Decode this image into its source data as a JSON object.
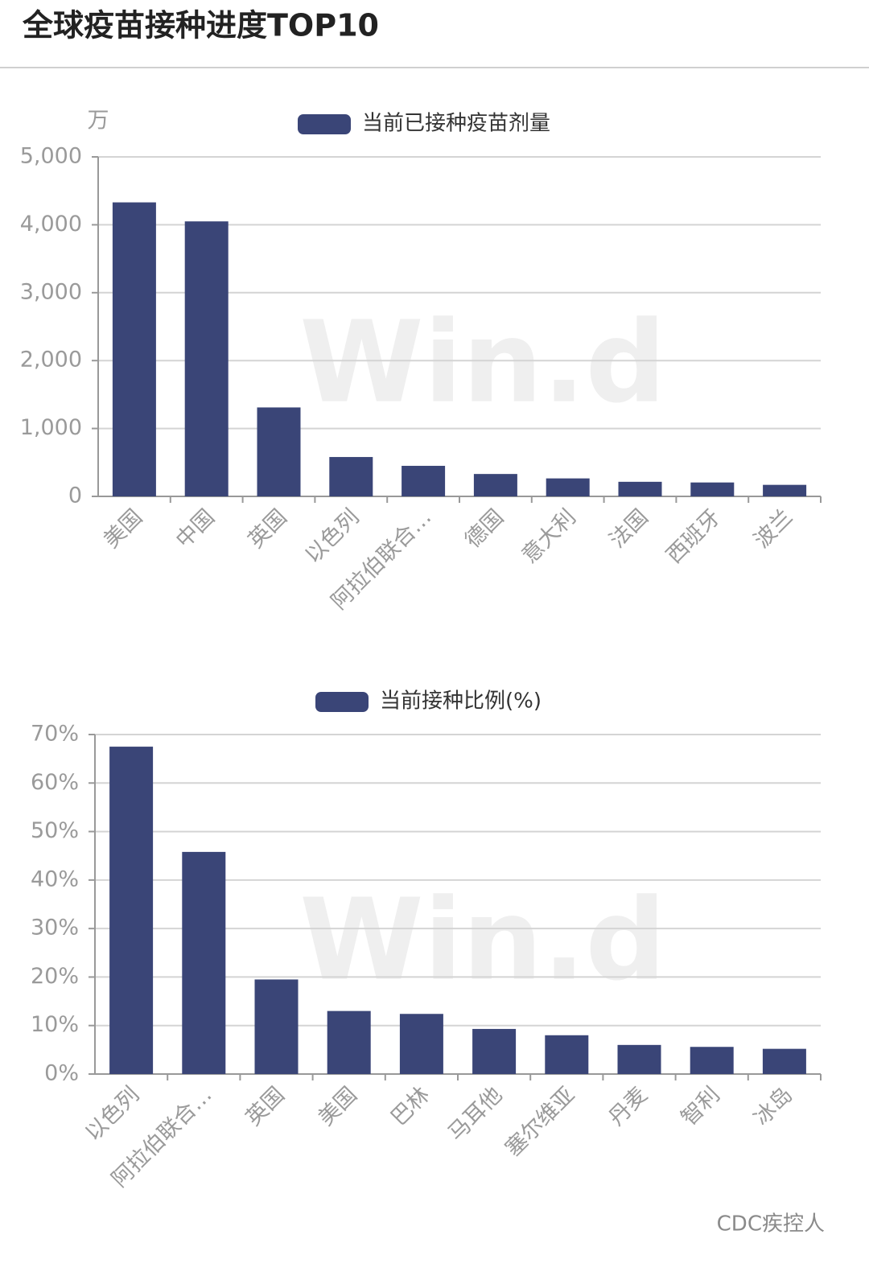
{
  "title": "全球疫苗接种进度TOP10",
  "watermark": "Win.d",
  "footer": "CDC疾控人",
  "chart_data": [
    {
      "type": "bar",
      "ylabel": "万",
      "categories": [
        "美国",
        "中国",
        "英国",
        "以色列",
        "阿拉伯联合…",
        "德国",
        "意大利",
        "法国",
        "西班牙",
        "波兰"
      ],
      "series": [
        {
          "name": "当前已接种疫苗剂量",
          "color": "#3a4577",
          "values": [
            4330,
            4050,
            1310,
            580,
            450,
            330,
            265,
            215,
            205,
            170
          ]
        }
      ],
      "ylim": [
        0,
        5000
      ],
      "yticks": [
        0,
        {
          "value": 1000,
          "label": "1,000"
        },
        {
          "value": 2000,
          "label": "2,000"
        },
        {
          "value": 3000,
          "label": "3,000"
        },
        {
          "value": 4000,
          "label": "4,000"
        },
        {
          "value": 5000,
          "label": "5,000"
        }
      ],
      "grid": true
    },
    {
      "type": "bar",
      "categories": [
        "以色列",
        "阿拉伯联合…",
        "英国",
        "美国",
        "巴林",
        "马耳他",
        "塞尔维亚",
        "丹麦",
        "智利",
        "冰岛"
      ],
      "series": [
        {
          "name": "当前接种比例(%)",
          "color": "#3a4577",
          "values": [
            67.5,
            45.8,
            19.5,
            13,
            12.4,
            9.3,
            8,
            6,
            5.6,
            5.2
          ]
        }
      ],
      "ylim": [
        0,
        70
      ],
      "yticks": [
        {
          "value": 0,
          "label": "0%"
        },
        {
          "value": 10,
          "label": "10%"
        },
        {
          "value": 20,
          "label": "20%"
        },
        {
          "value": 30,
          "label": "30%"
        },
        {
          "value": 40,
          "label": "40%"
        },
        {
          "value": 50,
          "label": "50%"
        },
        {
          "value": 60,
          "label": "60%"
        },
        {
          "value": 70,
          "label": "70%"
        }
      ],
      "grid": true
    }
  ]
}
